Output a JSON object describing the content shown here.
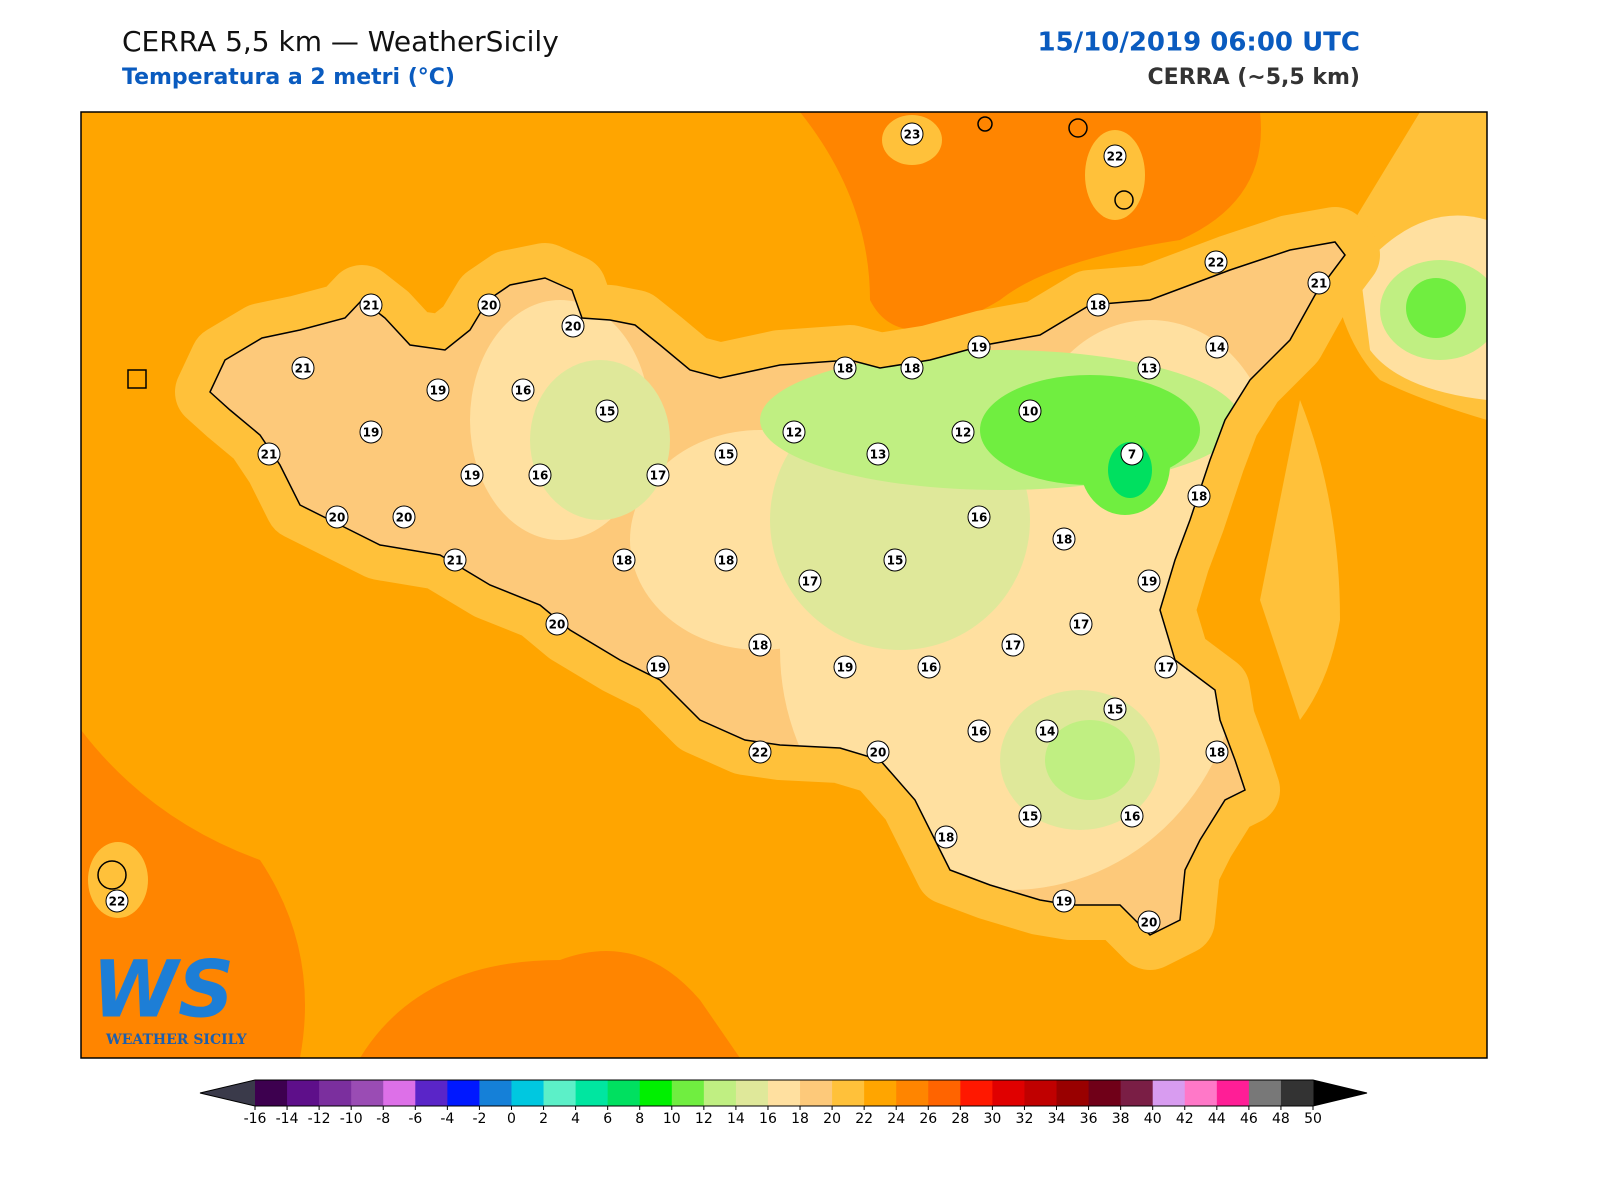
{
  "header": {
    "title": "CERRA 5,5 km — WeatherSicily",
    "subtitle": "Temperatura a 2 metri (°C)",
    "datetime": "15/10/2019 06:00 UTC",
    "model": "CERRA (~5,5 km)"
  },
  "stations": [
    23,
    22,
    22,
    21,
    18,
    14,
    13,
    19,
    18,
    18,
    10,
    12,
    7,
    13,
    12,
    15,
    17,
    15,
    16,
    16,
    20,
    20,
    21,
    21,
    19,
    19,
    21,
    19,
    20,
    20,
    21,
    18,
    18,
    17,
    15,
    16,
    18,
    18,
    19,
    17,
    17,
    17,
    16,
    19,
    18,
    19,
    20,
    22,
    20,
    16,
    14,
    15,
    18,
    15,
    16,
    18,
    19,
    20,
    22
  ],
  "colorbar": {
    "ticks": [
      -16,
      -14,
      -12,
      -10,
      -8,
      -6,
      -4,
      -2,
      0,
      2,
      4,
      6,
      8,
      10,
      12,
      14,
      16,
      18,
      20,
      22,
      24,
      26,
      28,
      30,
      32,
      34,
      36,
      38,
      40,
      42,
      44,
      46,
      48,
      50
    ],
    "colors": [
      "#3d004f",
      "#5e0f8a",
      "#7b2f9e",
      "#9a4cb4",
      "#dd70e8",
      "#5a25c8",
      "#0018ff",
      "#1580d8",
      "#00c8e0",
      "#5cf0c8",
      "#00e6a0",
      "#00e060",
      "#00f000",
      "#70ee40",
      "#c0ef82",
      "#dfe89a",
      "#ffe0a0",
      "#fdc97a",
      "#ffc13a",
      "#ffa500",
      "#ff8500",
      "#ff6400",
      "#ff1800",
      "#e00000",
      "#c00000",
      "#990000",
      "#700018",
      "#7a1e45",
      "#d89cf0",
      "#ff78c8",
      "#ff1e96",
      "#787878",
      "#333333"
    ],
    "under_color": "#3a3a4a",
    "over_color": "#000000"
  },
  "logo": {
    "mark": "WS",
    "text": "WEATHER SICILY"
  }
}
